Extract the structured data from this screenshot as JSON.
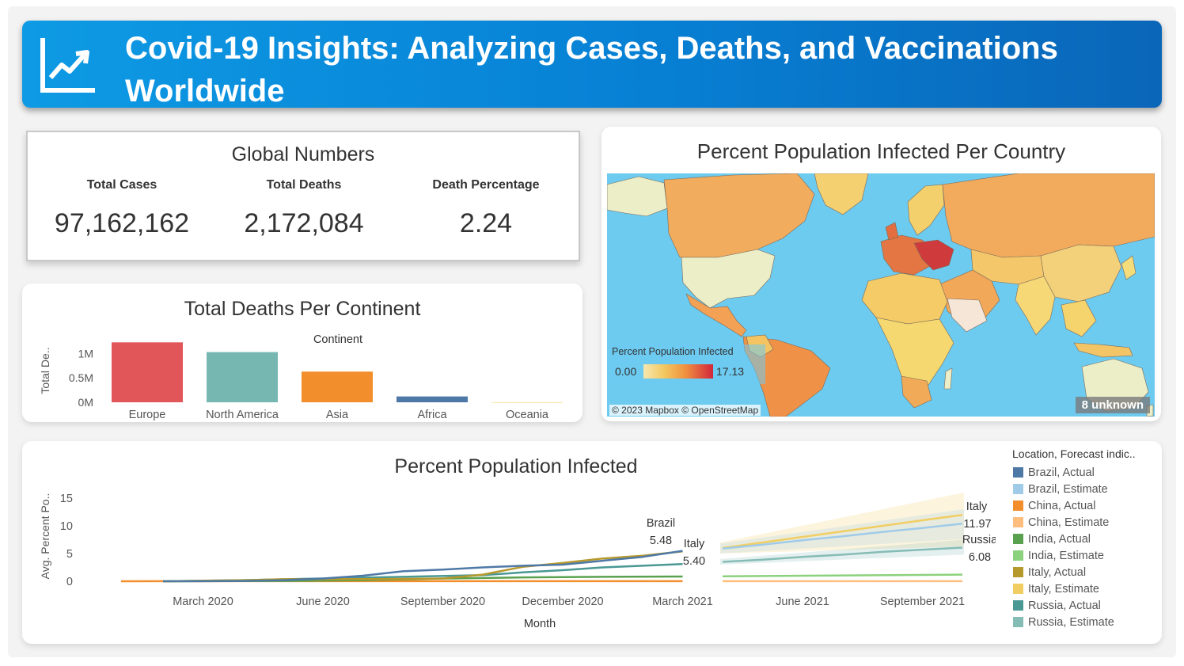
{
  "header": {
    "title": "Covid-19 Insights: Analyzing Cases, Deaths, and Vaccinations Worldwide",
    "icon": "trend-chart-icon"
  },
  "global_numbers": {
    "title": "Global Numbers",
    "total_cases_label": "Total Cases",
    "total_cases": "97,162,162",
    "total_deaths_label": "Total Deaths",
    "total_deaths": "2,172,084",
    "death_pct_label": "Death Percentage",
    "death_pct": "2.24"
  },
  "deaths_per_continent": {
    "title": "Total Deaths Per Continent",
    "column_header": "Continent",
    "y_axis_label": "Total De..",
    "y_ticks": [
      "1M",
      "0.5M",
      "0M"
    ]
  },
  "map": {
    "title": "Percent Population Infected Per Country",
    "legend_title": "Percent Population Infected",
    "legend_min": "0.00",
    "legend_max": "17.13",
    "attribution": "© 2023 Mapbox © OpenStreetMap",
    "unknown_badge": "8 unknown",
    "colors": {
      "ocean": "#6ecbf0",
      "low": "#f6e8b0",
      "mid": "#f2a154",
      "high": "#d2263c"
    }
  },
  "line_chart": {
    "title": "Percent Population Infected",
    "legend_title": "Location, Forecast indic..",
    "legend": [
      {
        "label": "Brazil, Actual",
        "color": "#4e79a7"
      },
      {
        "label": "Brazil, Estimate",
        "color": "#a0cbe8"
      },
      {
        "label": "China, Actual",
        "color": "#f28e2b"
      },
      {
        "label": "China, Estimate",
        "color": "#ffbe7d"
      },
      {
        "label": "India, Actual",
        "color": "#59a14f"
      },
      {
        "label": "India, Estimate",
        "color": "#8cd17d"
      },
      {
        "label": "Italy, Actual",
        "color": "#b6992d"
      },
      {
        "label": "Italy, Estimate",
        "color": "#f1ce63"
      },
      {
        "label": "Russia, Actual",
        "color": "#499894"
      },
      {
        "label": "Russia, Estimate",
        "color": "#86bcb6"
      }
    ],
    "annotations": {
      "brazil_name": "Brazil",
      "brazil_value": "5.48",
      "italy_name": "Italy",
      "italy_value": "5.40",
      "italy_est_name": "Italy",
      "italy_est_value": "11.97",
      "russia_est_name": "Russia",
      "russia_est_value": "6.08"
    }
  },
  "chart_data": [
    {
      "type": "bar",
      "title": "Total Deaths Per Continent",
      "xlabel": "Continent",
      "ylabel": "Total De..",
      "categories": [
        "Europe",
        "North America",
        "Asia",
        "Africa",
        "Oceania"
      ],
      "values": [
        1230000,
        1030000,
        630000,
        120000,
        1000
      ],
      "colors": [
        "#e15759",
        "#76b7b2",
        "#f28e2b",
        "#4e79a7",
        "#edc948"
      ],
      "ylim": [
        0,
        1300000
      ],
      "y_ticks": [
        {
          "label": "1M",
          "value": 1000000
        },
        {
          "label": "0.5M",
          "value": 500000
        },
        {
          "label": "0M",
          "value": 0
        }
      ]
    },
    {
      "type": "line",
      "title": "Percent Population Infected",
      "xlabel": "Month",
      "ylabel": "Avg. Percent Po..",
      "ylim": [
        0,
        16
      ],
      "y_ticks": [
        0,
        5,
        10,
        15
      ],
      "x_ticks": [
        {
          "label": "March 2020",
          "month": 2
        },
        {
          "label": "June 2020",
          "month": 5
        },
        {
          "label": "September 2020",
          "month": 8
        },
        {
          "label": "December 2020",
          "month": 11
        },
        {
          "label": "March 2021",
          "month": 14
        },
        {
          "label": "June 2021",
          "month": 17
        },
        {
          "label": "September 2021",
          "month": 20
        }
      ],
      "series": [
        {
          "name": "Brazil, Actual",
          "color": "#4e79a7",
          "months": [
            1,
            2,
            3,
            4,
            5,
            6,
            7,
            8,
            9,
            10,
            11,
            12,
            13,
            14
          ],
          "values": [
            0,
            0.01,
            0.05,
            0.2,
            0.5,
            1.0,
            1.8,
            2.1,
            2.5,
            2.8,
            3.0,
            3.7,
            4.4,
            5.48
          ]
        },
        {
          "name": "Brazil, Estimate",
          "color": "#a0cbe8",
          "months": [
            15,
            16,
            17,
            18,
            19,
            20,
            21
          ],
          "values": [
            5.9,
            6.6,
            7.4,
            8.1,
            8.9,
            9.6,
            10.4
          ]
        },
        {
          "name": "China, Actual",
          "color": "#f28e2b",
          "months": [
            0,
            1,
            2,
            3,
            4,
            5,
            6,
            7,
            8,
            9,
            10,
            11,
            12,
            13,
            14
          ],
          "values": [
            0,
            0.01,
            0.01,
            0.01,
            0.01,
            0.01,
            0.01,
            0.01,
            0.01,
            0.01,
            0.01,
            0.01,
            0.01,
            0.01,
            0.01
          ]
        },
        {
          "name": "China, Estimate",
          "color": "#ffbe7d",
          "months": [
            15,
            21
          ],
          "values": [
            0.02,
            0.02
          ]
        },
        {
          "name": "India, Actual",
          "color": "#59a14f",
          "months": [
            1,
            4,
            6,
            8,
            10,
            12,
            14
          ],
          "values": [
            0,
            0.05,
            0.2,
            0.5,
            0.7,
            0.8,
            0.85
          ]
        },
        {
          "name": "India, Estimate",
          "color": "#8cd17d",
          "months": [
            15,
            21
          ],
          "values": [
            0.9,
            1.2
          ]
        },
        {
          "name": "Italy, Actual",
          "color": "#b6992d",
          "months": [
            1,
            2,
            3,
            4,
            5,
            6,
            7,
            8,
            9,
            10,
            11,
            12,
            13,
            14
          ],
          "values": [
            0,
            0.1,
            0.17,
            0.37,
            0.39,
            0.4,
            0.42,
            0.5,
            1.2,
            2.6,
            3.3,
            4.1,
            4.6,
            5.4
          ]
        },
        {
          "name": "Italy, Estimate",
          "color": "#f1ce63",
          "months": [
            15,
            16,
            17,
            18,
            19,
            20,
            21
          ],
          "values": [
            6.0,
            7.0,
            8.0,
            9.0,
            10.0,
            11.0,
            11.97
          ]
        },
        {
          "name": "Russia, Actual",
          "color": "#499894",
          "months": [
            1,
            3,
            5,
            7,
            9,
            10,
            11,
            12,
            13,
            14
          ],
          "values": [
            0,
            0.2,
            0.5,
            0.8,
            1.1,
            1.6,
            2.0,
            2.5,
            2.8,
            3.1
          ]
        },
        {
          "name": "Russia, Estimate",
          "color": "#86bcb6",
          "months": [
            15,
            16,
            17,
            18,
            19,
            20,
            21
          ],
          "values": [
            3.5,
            3.9,
            4.4,
            4.8,
            5.3,
            5.7,
            6.08
          ]
        }
      ]
    }
  ]
}
